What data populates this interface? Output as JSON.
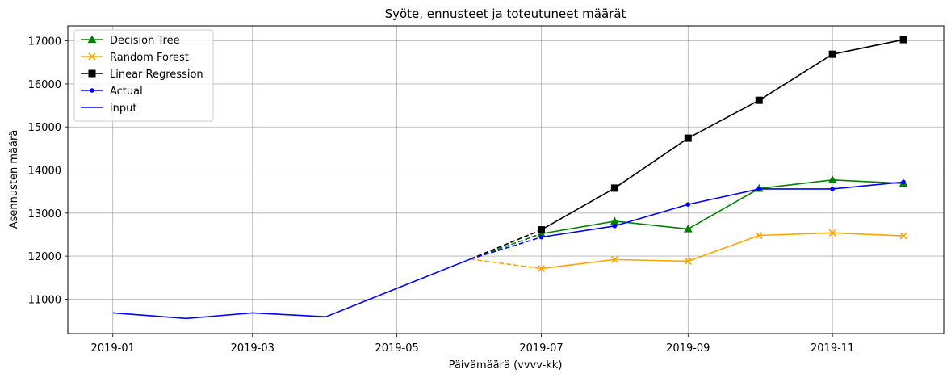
{
  "chart_data": {
    "type": "line",
    "title": "Syöte, ennusteet ja toteutuneet määrät",
    "xlabel": "Päivämäärä (vvvv-kk)",
    "ylabel": "Asennusten määrä",
    "x_tick_labels": [
      "2019-01",
      "2019-03",
      "2019-05",
      "2019-07",
      "2019-09",
      "2019-11"
    ],
    "x_ticks": [
      "2019-01-01",
      "2019-03-01",
      "2019-05-01",
      "2019-07-01",
      "2019-09-01",
      "2019-11-01"
    ],
    "xlim": [
      "2018-12-13",
      "2019-12-18"
    ],
    "y_ticks": [
      11000,
      12000,
      13000,
      14000,
      15000,
      16000,
      17000
    ],
    "y_tick_labels": [
      "11000",
      "12000",
      "13000",
      "14000",
      "15000",
      "16000",
      "17000"
    ],
    "ylim": [
      10200,
      17350
    ],
    "grid": true,
    "legend_position": "top-left",
    "series": [
      {
        "name": "Decision Tree",
        "color": "#008000",
        "marker": "triangle",
        "x": [
          "2019-07-01",
          "2019-08-01",
          "2019-09-01",
          "2019-10-01",
          "2019-11-01",
          "2019-12-01"
        ],
        "y": [
          12520,
          12810,
          12630,
          13570,
          13770,
          13690
        ]
      },
      {
        "name": "Random Forest",
        "color": "#ffa500",
        "marker": "x",
        "x": [
          "2019-07-01",
          "2019-08-01",
          "2019-09-01",
          "2019-10-01",
          "2019-11-01",
          "2019-12-01"
        ],
        "y": [
          11710,
          11920,
          11880,
          12480,
          12540,
          12470
        ]
      },
      {
        "name": "Linear Regression",
        "color": "#000000",
        "marker": "square",
        "x": [
          "2019-07-01",
          "2019-08-01",
          "2019-09-01",
          "2019-10-01",
          "2019-11-01",
          "2019-12-01"
        ],
        "y": [
          12610,
          13580,
          14740,
          15620,
          16690,
          17030
        ]
      },
      {
        "name": "Actual",
        "color": "#0000ff",
        "marker": "dot",
        "x": [
          "2019-07-01",
          "2019-08-01",
          "2019-09-01",
          "2019-10-01",
          "2019-11-01",
          "2019-12-01"
        ],
        "y": [
          12440,
          12700,
          13200,
          13560,
          13560,
          13720
        ]
      },
      {
        "name": "input",
        "color": "#0000ff",
        "marker": "none",
        "x": [
          "2019-01-01",
          "2019-02-01",
          "2019-03-01",
          "2019-04-01",
          "2019-05-01",
          "2019-06-01"
        ],
        "y": [
          10680,
          10550,
          10680,
          10590,
          11250,
          11930
        ]
      }
    ],
    "connectors": [
      {
        "color": "#008000",
        "style": "dashed",
        "x": [
          "2019-06-01",
          "2019-07-01"
        ],
        "y": [
          11930,
          12520
        ]
      },
      {
        "color": "#ffa500",
        "style": "dashed",
        "x": [
          "2019-06-01",
          "2019-07-01"
        ],
        "y": [
          11930,
          11710
        ]
      },
      {
        "color": "#000000",
        "style": "dashed",
        "x": [
          "2019-06-01",
          "2019-07-01"
        ],
        "y": [
          11930,
          12610
        ]
      },
      {
        "color": "#0000ff",
        "style": "dashed",
        "x": [
          "2019-06-01",
          "2019-07-01"
        ],
        "y": [
          11930,
          12440
        ]
      }
    ]
  }
}
